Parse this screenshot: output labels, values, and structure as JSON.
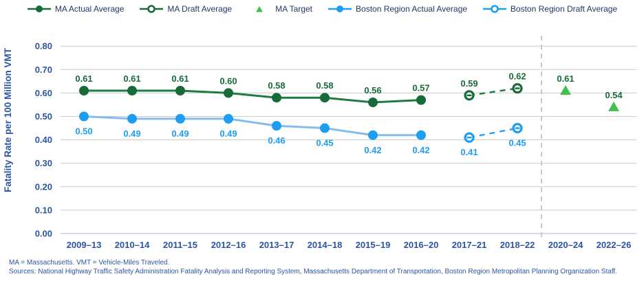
{
  "legend": {
    "items": [
      {
        "label": "MA Actual Average",
        "marker": "line-filled-circle",
        "color": "#176B38"
      },
      {
        "label": "MA Draft Average",
        "marker": "line-open-circle",
        "color": "#176B38"
      },
      {
        "label": "MA Target",
        "marker": "triangle",
        "color": "#43BF4B"
      },
      {
        "label": "Boston Region Actual Average",
        "marker": "line-filled-circle",
        "color": "#1E9DF2"
      },
      {
        "label": "Boston Region Draft Average",
        "marker": "line-open-circle",
        "color": "#1E9DF2"
      }
    ]
  },
  "chart_data": {
    "type": "line",
    "title": "",
    "xlabel": "",
    "ylabel": "Fatality Rate per 100 Million VMT",
    "ylim": [
      0,
      0.8
    ],
    "ytick_step": 0.1,
    "grid": true,
    "legend_position": "top",
    "axis_text_color": "#2B55A2",
    "gridline_color": "#CBCBCB",
    "baseline_color": "#BFD2E8",
    "divider_color": "#C9C9C9",
    "divider_after_index": 9,
    "categories": [
      "2009–13",
      "2010–14",
      "2011–15",
      "2012–16",
      "2013–17",
      "2014–18",
      "2015–19",
      "2016–20",
      "2017–21",
      "2018–22",
      "2020–24",
      "2022–26"
    ],
    "series": [
      {
        "name": "MA Actual Average",
        "line_style": "solid",
        "marker": "circle",
        "color": "#176B38",
        "line_color": "#1E7C40",
        "label_position": "above",
        "values": [
          0.61,
          0.61,
          0.61,
          0.6,
          0.58,
          0.58,
          0.56,
          0.57,
          null,
          null,
          null,
          null
        ]
      },
      {
        "name": "MA Draft Average",
        "line_style": "dashed",
        "marker": "open-circle",
        "color": "#176B38",
        "line_color": "#1E7C40",
        "label_position": "above",
        "values": [
          null,
          null,
          null,
          null,
          null,
          null,
          null,
          null,
          0.59,
          0.62,
          null,
          null
        ]
      },
      {
        "name": "MA Target",
        "line_style": "none",
        "marker": "triangle",
        "color": "#43BF4B",
        "label_color": "#176B38",
        "label_position": "above",
        "values": [
          null,
          null,
          null,
          null,
          null,
          null,
          null,
          null,
          null,
          null,
          0.61,
          0.54
        ]
      },
      {
        "name": "Boston Region Actual Average",
        "line_style": "solid",
        "marker": "circle",
        "color": "#1E9DF2",
        "line_color": "#85BCEC",
        "label_position": "below",
        "values": [
          0.5,
          0.49,
          0.49,
          0.49,
          0.46,
          0.45,
          0.42,
          0.42,
          null,
          null,
          null,
          null
        ]
      },
      {
        "name": "Boston Region Draft Average",
        "line_style": "dashed",
        "marker": "open-circle",
        "color": "#1E9DF2",
        "line_color": "#2AA0F0",
        "label_position": "below",
        "values": [
          null,
          null,
          null,
          null,
          null,
          null,
          null,
          null,
          0.41,
          0.45,
          null,
          null
        ]
      }
    ]
  },
  "footnotes": [
    "MA = Massachusetts. VMT = Vehicle-Miles Traveled.",
    "Sources: National Highway Traffic Safety Administration Fatality Analysis and Reporting System, Massachusetts Department of Transportation, Boston Region Metropolitan Planning Organization Staff."
  ]
}
